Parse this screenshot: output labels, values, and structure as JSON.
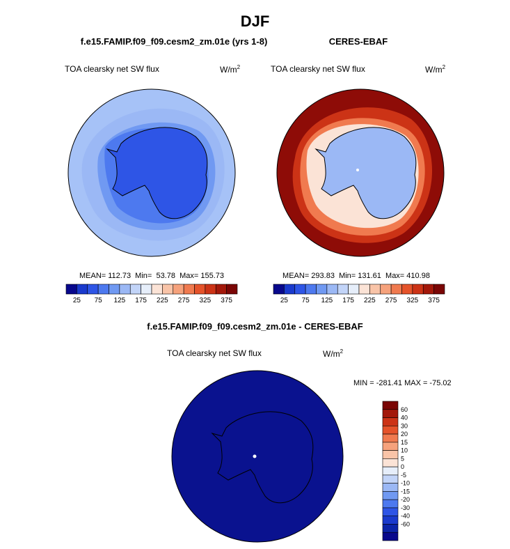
{
  "page": {
    "title": "DJF"
  },
  "panels": {
    "left": {
      "case": "f.e15.FAMIP.f09_f09.cesm2_zm.01e (yrs 1-8)",
      "variable": "TOA clearsky net SW flux",
      "units": "W/m",
      "units_exp": "2",
      "stats": "MEAN= 112.73  Min=  53.78  Max= 155.73"
    },
    "right": {
      "case": "CERES-EBAF",
      "variable": "TOA clearsky net SW flux",
      "units": "W/m",
      "units_exp": "2",
      "stats": "MEAN= 293.83  Min= 131.61  Max= 410.98"
    },
    "diff": {
      "case": "f.e15.FAMIP.f09_f09.cesm2_zm.01e - CERES-EBAF",
      "variable": "TOA clearsky net SW flux",
      "units": "W/m",
      "units_exp": "2",
      "stats": "MIN = -281.41 MAX = -75.02"
    }
  },
  "colors": {
    "main_palette": [
      "#08088c",
      "#1a3acd",
      "#2e55e6",
      "#4d79ef",
      "#7099f2",
      "#9bb8f5",
      "#c2d4f8",
      "#e6eefa",
      "#fbe3d6",
      "#f9c4a8",
      "#f6a27c",
      "#f07a4f",
      "#e5532a",
      "#cc3316",
      "#a3180a",
      "#7a0605"
    ],
    "diff_palette": [
      "#08088c",
      "#0b24a8",
      "#1a3acd",
      "#2e55e6",
      "#4d79ef",
      "#7099f2",
      "#9bb8f5",
      "#c2d4f8",
      "#e6eefa",
      "#fbe3d6",
      "#f9c4a8",
      "#f6a27c",
      "#f07a4f",
      "#e5532a",
      "#cc3316",
      "#a3180a",
      "#7a0605"
    ],
    "model_ocean": "#a6c2f7",
    "obs_ocean": "#8e0c07"
  },
  "chart_data": [
    {
      "type": "heatmap",
      "title": "f.e15.FAMIP.f09_f09.cesm2_zm.01e (yrs 1-8)",
      "subtitle": "TOA clearsky net SW flux",
      "units": "W/m2",
      "projection": "south polar stereographic",
      "colorbar_ticks": [
        25,
        75,
        125,
        175,
        225,
        275,
        325,
        375
      ],
      "colorbar_range": [
        0,
        400
      ],
      "colorbar_levels": 16,
      "mean": 112.73,
      "min": 53.78,
      "max": 155.73
    },
    {
      "type": "heatmap",
      "title": "CERES-EBAF",
      "subtitle": "TOA clearsky net SW flux",
      "units": "W/m2",
      "projection": "south polar stereographic",
      "colorbar_ticks": [
        25,
        75,
        125,
        175,
        225,
        275,
        325,
        375
      ],
      "colorbar_range": [
        0,
        400
      ],
      "colorbar_levels": 16,
      "mean": 293.83,
      "min": 131.61,
      "max": 410.98
    },
    {
      "type": "heatmap",
      "title": "f.e15.FAMIP.f09_f09.cesm2_zm.01e - CERES-EBAF",
      "subtitle": "TOA clearsky net SW flux",
      "units": "W/m2",
      "projection": "south polar stereographic",
      "colorbar_labels": [
        "60",
        "40",
        "30",
        "20",
        "15",
        "10",
        "5",
        "0",
        "-5",
        "-10",
        "-15",
        "-20",
        "-30",
        "-40",
        "-60"
      ],
      "min": -281.41,
      "max": -75.02
    }
  ]
}
